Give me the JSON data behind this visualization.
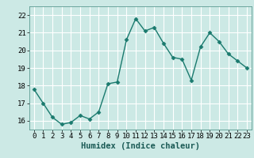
{
  "x": [
    0,
    1,
    2,
    3,
    4,
    5,
    6,
    7,
    8,
    9,
    10,
    11,
    12,
    13,
    14,
    15,
    16,
    17,
    18,
    19,
    20,
    21,
    22,
    23
  ],
  "y": [
    17.8,
    17.0,
    16.2,
    15.8,
    15.9,
    16.3,
    16.1,
    16.5,
    18.1,
    18.2,
    20.6,
    21.8,
    21.1,
    21.3,
    20.4,
    19.6,
    19.5,
    18.3,
    20.2,
    21.0,
    20.5,
    19.8,
    19.4,
    19.0
  ],
  "line_color": "#1a7a6e",
  "marker": "D",
  "marker_size": 2.5,
  "bg_color": "#cce9e5",
  "grid_color": "#ffffff",
  "xlabel": "Humidex (Indice chaleur)",
  "ylabel": "",
  "title": "",
  "xlim": [
    -0.5,
    23.5
  ],
  "ylim": [
    15.5,
    22.5
  ],
  "yticks": [
    16,
    17,
    18,
    19,
    20,
    21,
    22
  ],
  "xticks": [
    0,
    1,
    2,
    3,
    4,
    5,
    6,
    7,
    8,
    9,
    10,
    11,
    12,
    13,
    14,
    15,
    16,
    17,
    18,
    19,
    20,
    21,
    22,
    23
  ],
  "xlabel_fontsize": 7.5,
  "tick_fontsize": 6.5,
  "linewidth": 1.0
}
